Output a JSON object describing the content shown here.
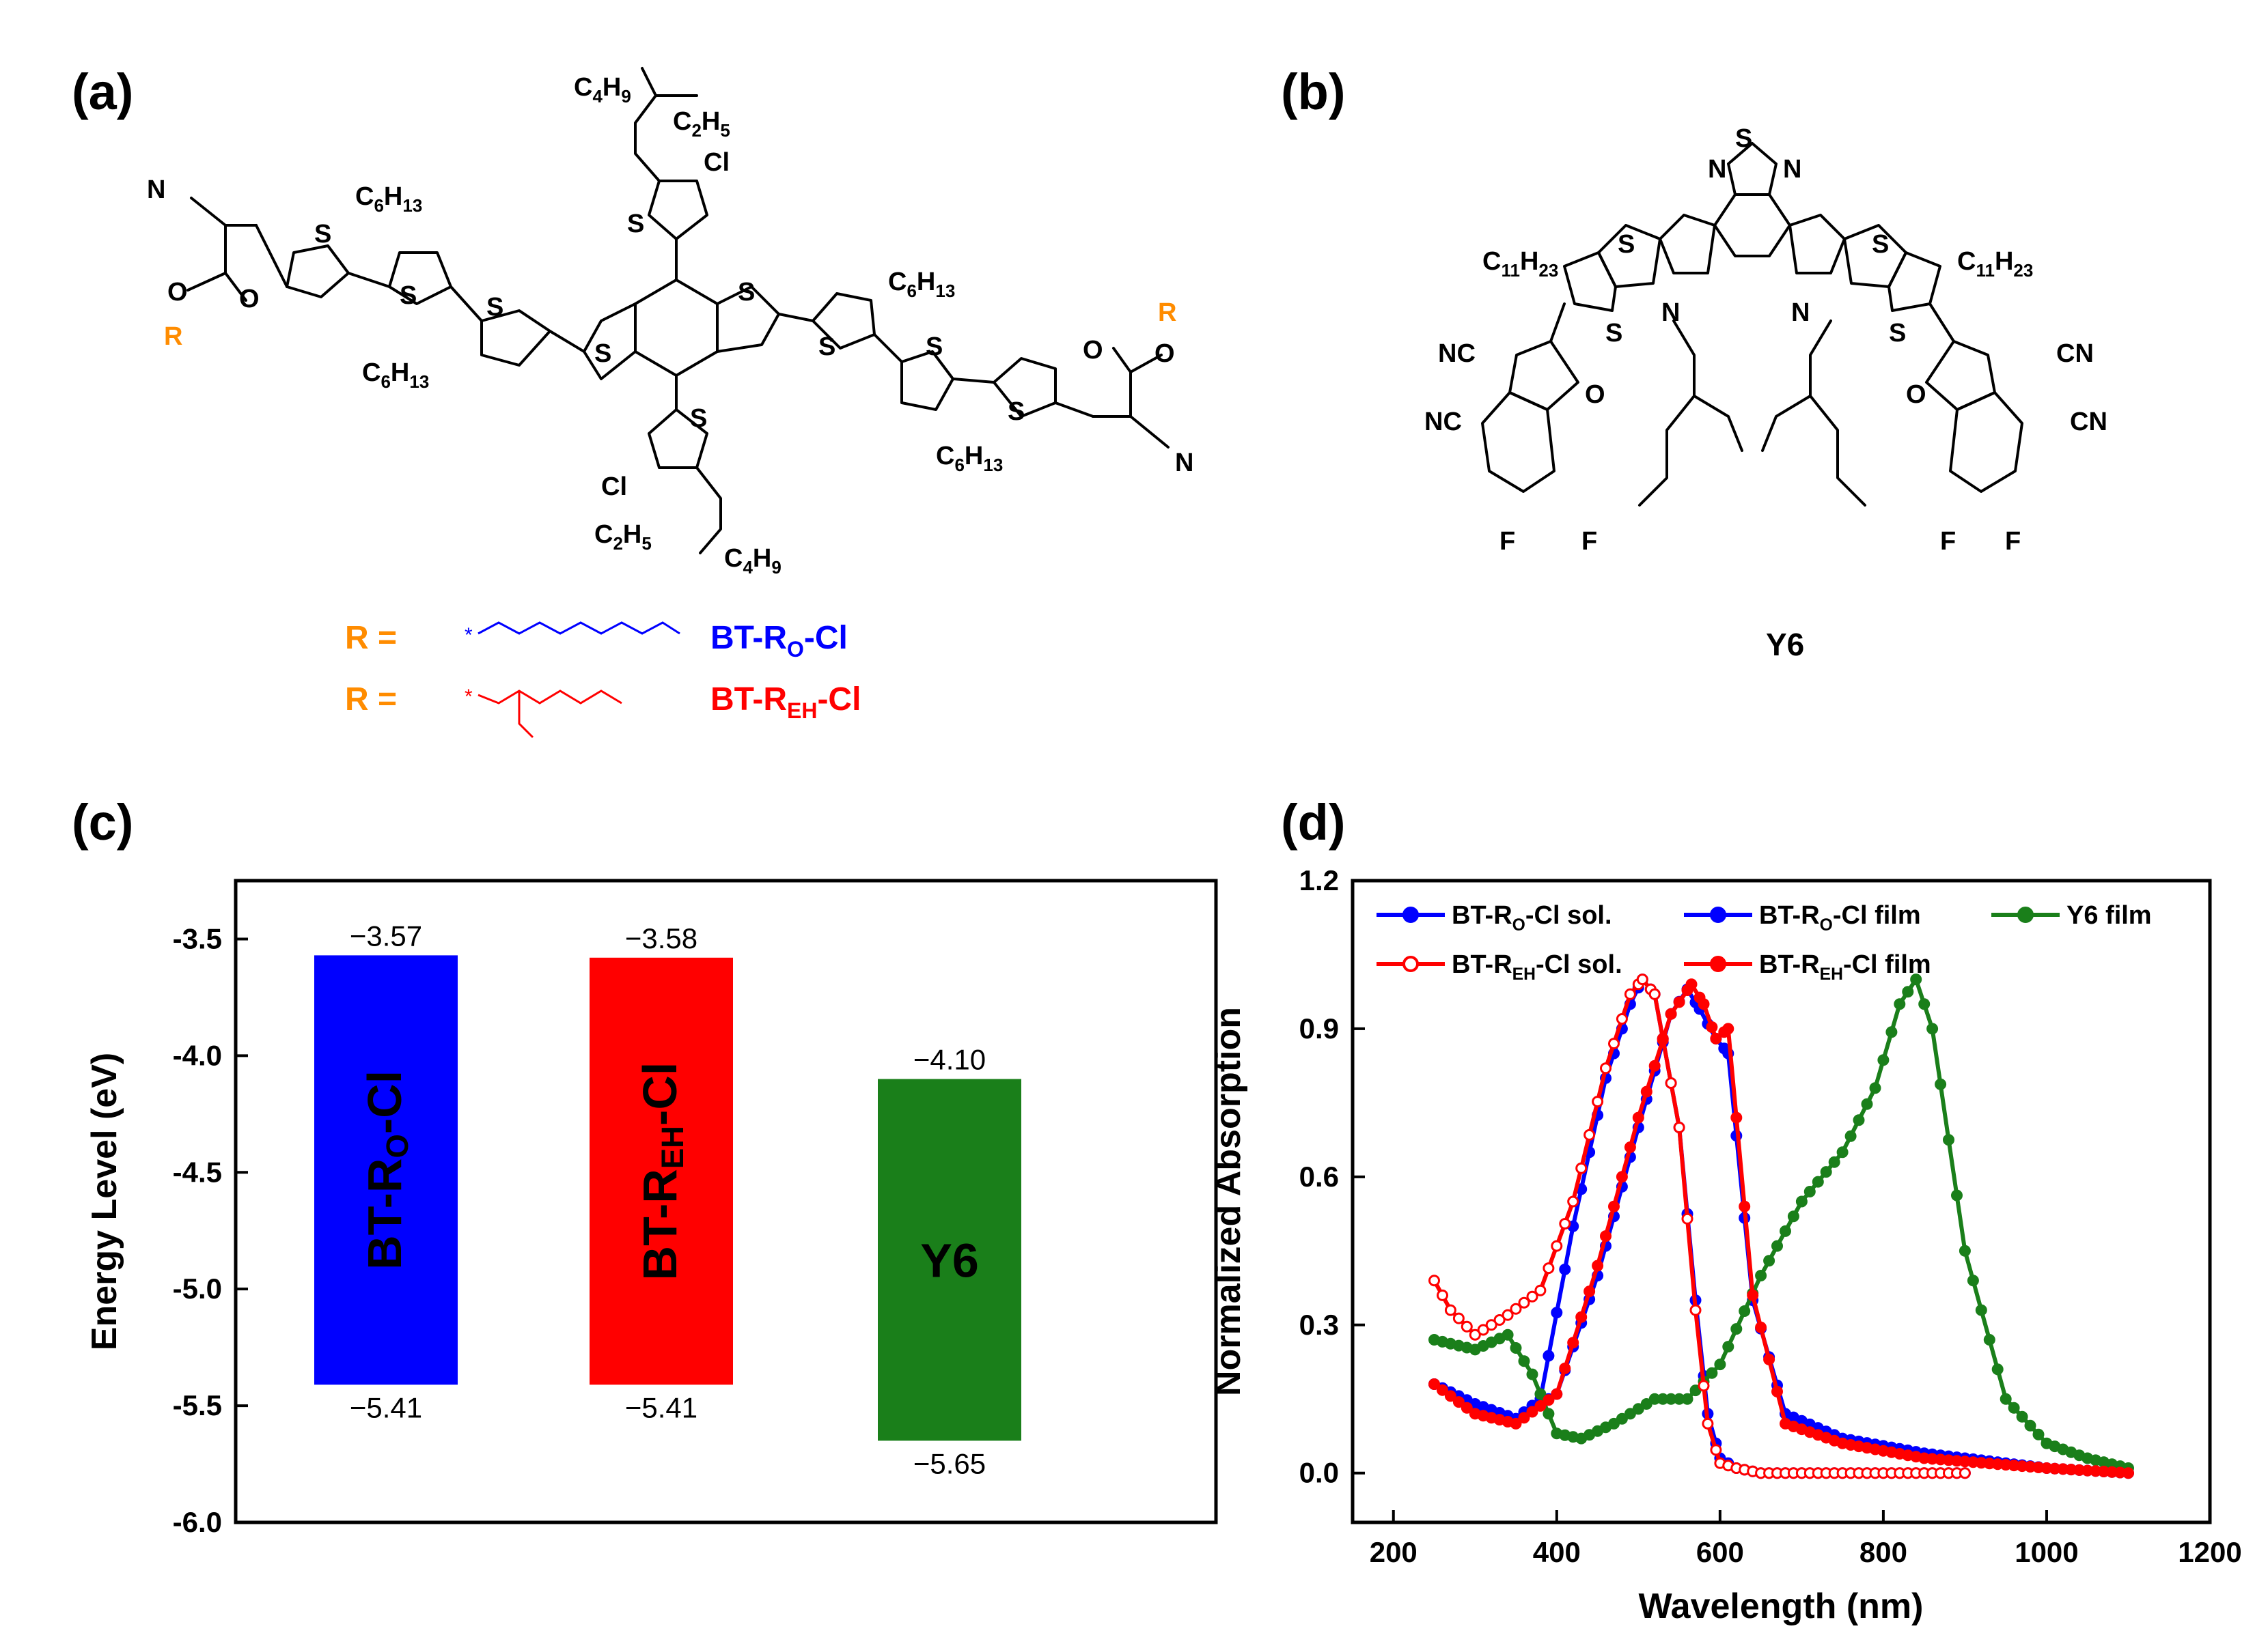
{
  "panels": {
    "a": {
      "label": "(a)"
    },
    "b": {
      "label": "(b)"
    },
    "c": {
      "label": "(c)"
    },
    "d": {
      "label": "(d)"
    }
  },
  "structure_a": {
    "atoms": {
      "N": "N",
      "C": "C",
      "O": "O",
      "R": "R",
      "S": "S",
      "Cl": "Cl",
      "c6": "C6H13",
      "c4": "C4H9",
      "c2": "C2H5"
    },
    "r_eq": "R  =",
    "r_rows": [
      {
        "name": "BT-R",
        "sub": "O",
        "tail": "-Cl",
        "color": "#0000ff"
      },
      {
        "name": "BT-R",
        "sub": "EH",
        "tail": "-Cl",
        "color": "#ff0000"
      }
    ],
    "r_color": "#ff8c00"
  },
  "structure_b": {
    "name": "Y6",
    "atoms": {
      "c11": "C11H23",
      "nc": "NC",
      "cn": "CN",
      "F": "F",
      "N": "N",
      "S": "S",
      "O": "O"
    }
  },
  "chart_data": [
    {
      "type": "bar",
      "panel": "c",
      "ylabel": "Energy Level (eV)",
      "ylim": [
        -6.0,
        -3.25
      ],
      "yticks": [
        "-3.5",
        "-4.0",
        "-4.5",
        "-5.0",
        "-5.5",
        "-6.0"
      ],
      "bars": [
        {
          "name": "BT-R",
          "sub": "O",
          "tail": "-Cl",
          "lumo": -3.57,
          "homo": -5.41,
          "lumo_label": "−3.57",
          "homo_label": "−5.41",
          "color": "#0000ff"
        },
        {
          "name": "BT-R",
          "sub": "EH",
          "tail": "-Cl",
          "lumo": -3.58,
          "homo": -5.41,
          "lumo_label": "−3.58",
          "homo_label": "−5.41",
          "color": "#ff0000"
        },
        {
          "name": "Y6",
          "sub": "",
          "tail": "",
          "lumo": -4.1,
          "homo": -5.65,
          "lumo_label": "−4.10",
          "homo_label": "−5.65",
          "color": "#1a7f1a"
        }
      ]
    },
    {
      "type": "line",
      "panel": "d",
      "xlabel": "Wavelength (nm)",
      "ylabel": "Normalized Absorption",
      "xlim": [
        150,
        1200
      ],
      "ylim": [
        -0.1,
        1.2
      ],
      "xticks": [
        "200",
        "400",
        "600",
        "800",
        "1000",
        "1200"
      ],
      "yticks": [
        "0.0",
        "0.3",
        "0.6",
        "0.9",
        "1.2"
      ],
      "series": [
        {
          "name": "BT-R",
          "sub": "O",
          "tail": "-Cl sol.",
          "color": "#0000ff",
          "marker": "filled",
          "x": [
            250,
            300,
            350,
            380,
            420,
            460,
            490,
            505,
            520,
            550,
            570,
            585,
            600,
            620,
            650,
            700,
            800,
            900
          ],
          "y": [
            0.18,
            0.14,
            0.11,
            0.15,
            0.5,
            0.8,
            0.95,
            1.0,
            0.97,
            0.7,
            0.35,
            0.12,
            0.03,
            0.01,
            0.0,
            0.0,
            0.0,
            0.0
          ]
        },
        {
          "name": "BT-R",
          "sub": "O",
          "tail": "-Cl film",
          "color": "#0000ff",
          "marker": "half",
          "x": [
            250,
            300,
            350,
            400,
            450,
            500,
            540,
            560,
            575,
            595,
            610,
            640,
            680,
            750,
            850,
            1000,
            1100
          ],
          "y": [
            0.18,
            0.13,
            0.11,
            0.16,
            0.4,
            0.7,
            0.93,
            0.98,
            0.94,
            0.88,
            0.85,
            0.35,
            0.12,
            0.07,
            0.04,
            0.01,
            0.0
          ]
        },
        {
          "name": "Y6 film",
          "sub": "",
          "tail": "",
          "color": "#1a7f1a",
          "marker": "filled",
          "x": [
            250,
            300,
            340,
            370,
            400,
            430,
            470,
            520,
            560,
            600,
            650,
            700,
            750,
            790,
            820,
            840,
            860,
            900,
            950,
            1000,
            1050,
            1100
          ],
          "y": [
            0.27,
            0.25,
            0.28,
            0.2,
            0.08,
            0.07,
            0.1,
            0.15,
            0.15,
            0.22,
            0.4,
            0.55,
            0.65,
            0.78,
            0.95,
            1.0,
            0.9,
            0.45,
            0.15,
            0.06,
            0.03,
            0.01
          ]
        },
        {
          "name": "BT-R",
          "sub": "EH",
          "tail": "-Cl sol.",
          "color": "#ff0000",
          "marker": "open",
          "x": [
            250,
            270,
            300,
            340,
            380,
            420,
            460,
            490,
            505,
            520,
            550,
            570,
            585,
            600,
            620,
            650,
            700,
            800,
            900
          ],
          "y": [
            0.39,
            0.33,
            0.28,
            0.32,
            0.37,
            0.55,
            0.82,
            0.97,
            1.0,
            0.97,
            0.7,
            0.33,
            0.1,
            0.02,
            0.01,
            0.0,
            0.0,
            0.0,
            0.0
          ]
        },
        {
          "name": "BT-R",
          "sub": "EH",
          "tail": "-Cl film",
          "color": "#ff0000",
          "marker": "half",
          "x": [
            250,
            300,
            350,
            400,
            450,
            500,
            540,
            565,
            580,
            595,
            610,
            640,
            680,
            750,
            850,
            1000,
            1100
          ],
          "y": [
            0.18,
            0.12,
            0.1,
            0.16,
            0.42,
            0.72,
            0.93,
            0.99,
            0.95,
            0.88,
            0.9,
            0.36,
            0.1,
            0.06,
            0.03,
            0.01,
            0.0
          ]
        }
      ]
    }
  ]
}
